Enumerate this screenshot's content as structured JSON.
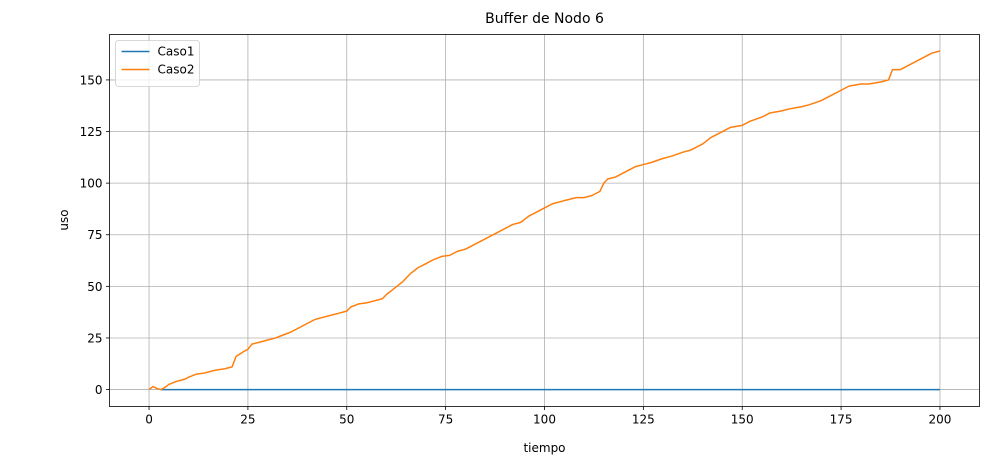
{
  "chart_data": {
    "type": "line",
    "title": "Buffer de Nodo 6",
    "xlabel": "tiempo",
    "ylabel": "uso",
    "xlim": [
      -10,
      210
    ],
    "ylim": [
      -8.2,
      172
    ],
    "xticks": [
      0,
      25,
      50,
      75,
      100,
      125,
      150,
      175,
      200
    ],
    "xtick_labels": [
      "0",
      "25",
      "50",
      "75",
      "100",
      "125",
      "150",
      "175",
      "200"
    ],
    "yticks": [
      0,
      25,
      50,
      75,
      100,
      125,
      150
    ],
    "ytick_labels": [
      "0",
      "25",
      "50",
      "75",
      "100",
      "125",
      "150"
    ],
    "grid": true,
    "legend_position": "top-left",
    "series": [
      {
        "name": "Caso1",
        "color": "#1f77b4",
        "x": [
          3,
          200
        ],
        "y": [
          0,
          0
        ]
      },
      {
        "name": "Caso2",
        "color": "#ff7f0e",
        "x": [
          0,
          1,
          2,
          3,
          4,
          5,
          7,
          9,
          10,
          12,
          14,
          15,
          17,
          19,
          20,
          21,
          22,
          24,
          25,
          26,
          28,
          30,
          32,
          34,
          36,
          38,
          40,
          42,
          44,
          46,
          48,
          50,
          51,
          53,
          55,
          57,
          59,
          60,
          62,
          64,
          66,
          68,
          70,
          72,
          74,
          76,
          78,
          80,
          82,
          84,
          86,
          88,
          90,
          92,
          94,
          96,
          98,
          100,
          102,
          104,
          106,
          108,
          110,
          112,
          114,
          115,
          116,
          118,
          120,
          122,
          123,
          125,
          127,
          130,
          132,
          135,
          137,
          140,
          142,
          145,
          147,
          150,
          152,
          155,
          157,
          160,
          162,
          165,
          167,
          170,
          172,
          175,
          177,
          180,
          182,
          185,
          187,
          188,
          190,
          192,
          194,
          196,
          198,
          200
        ],
        "y": [
          0,
          1.5,
          0.5,
          0,
          1,
          2.5,
          4,
          5,
          6,
          7.5,
          8,
          8.5,
          9.5,
          10,
          10.5,
          11,
          16,
          18.5,
          19.5,
          22,
          23,
          24,
          25,
          26.5,
          28,
          30,
          32,
          34,
          35,
          36,
          37,
          38,
          40,
          41.5,
          42,
          43,
          44,
          46,
          49,
          52,
          56,
          59,
          61,
          63,
          64.5,
          65,
          67,
          68,
          70,
          72,
          74,
          76,
          78,
          80,
          81,
          84,
          86,
          88,
          90,
          91,
          92,
          93,
          93,
          94,
          96,
          100,
          102,
          103,
          105,
          107,
          108,
          109,
          110,
          112,
          113,
          115,
          116,
          119,
          122,
          125,
          127,
          128,
          130,
          132,
          134,
          135,
          136,
          137,
          138,
          140,
          142,
          145,
          147,
          148,
          148,
          149,
          150,
          155,
          155,
          157,
          159,
          161,
          163,
          164
        ]
      }
    ]
  }
}
